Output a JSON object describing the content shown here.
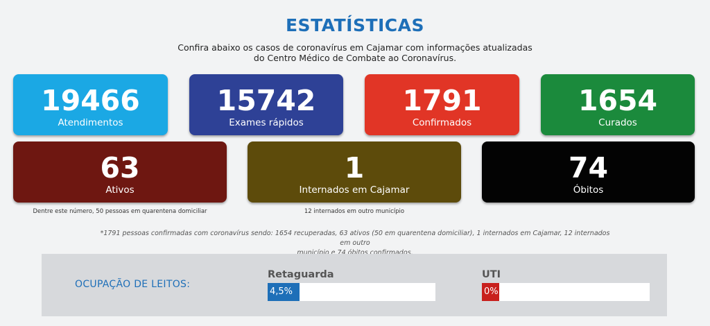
{
  "header": {
    "title": "ESTATÍSTICAS",
    "subtitle_line1": "Confira abaixo os casos de coronavírus em Cajamar com informações atualizadas",
    "subtitle_line2": "do Centro Médico de Combate ao Coronavírus."
  },
  "stats": [
    {
      "value": "19466",
      "label": "Atendimentos",
      "color": "#1ba8e4"
    },
    {
      "value": "15742",
      "label": "Exames rápidos",
      "color": "#2e4196"
    },
    {
      "value": "1791",
      "label": "Confirmados",
      "color": "#e13526"
    },
    {
      "value": "1654",
      "label": "Curados",
      "color": "#1b8a3c"
    },
    {
      "value": "63",
      "label": "Ativos",
      "color": "#6e1711"
    },
    {
      "value": "1",
      "label": "Internados em Cajamar",
      "color": "#5d4b0b"
    },
    {
      "value": "74",
      "label": "Óbitos",
      "color": "#030303"
    }
  ],
  "notes": {
    "ativos": "Dentre este número, 50 pessoas em quarentena domiciliar",
    "internados": "12 internados em outro município"
  },
  "footnote": {
    "line1": "*1791 pessoas confirmadas com coronavírus sendo: 1654 recuperadas, 63 ativos (50 em quarentena domiciliar), 1 internados em Cajamar, 12 internados em outro",
    "line2": "município e 74 óbitos confirmados."
  },
  "occupancy": {
    "title": "OCUPAÇÃO DE LEITOS:",
    "retaguarda": {
      "label": "Retaguarda",
      "text": "4,5%",
      "percent": 4.5,
      "color": "#1e6fb8"
    },
    "uti": {
      "label": "UTI",
      "text": "0%",
      "percent": 0,
      "color": "#c8201d"
    }
  }
}
